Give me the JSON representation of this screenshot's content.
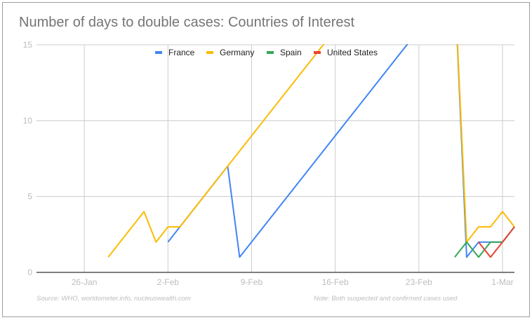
{
  "chart_data": {
    "type": "line",
    "title": "Number of days to double cases: Countries of Interest",
    "xlabel": "",
    "ylabel": "",
    "xlim": [
      "22-Jan",
      "2-Mar"
    ],
    "ylim": [
      0,
      15
    ],
    "x_ticks": [
      "26-Jan",
      "2-Feb",
      "9-Feb",
      "16-Feb",
      "23-Feb",
      "1-Mar"
    ],
    "y_ticks": [
      0,
      5,
      10,
      15
    ],
    "grid": true,
    "legend_position": "top",
    "series": [
      {
        "name": "France",
        "color": "#4285f4",
        "points": [
          [
            "2-Feb",
            2
          ],
          [
            "3-Feb",
            3
          ],
          [
            "7-Feb",
            7
          ],
          [
            "8-Feb",
            1
          ],
          [
            "26-Feb",
            19
          ],
          [
            "27-Feb",
            1
          ],
          [
            "28-Feb",
            2
          ],
          [
            "29-Feb",
            2
          ],
          [
            "1-Mar",
            2
          ],
          [
            "2-Mar",
            3
          ]
        ]
      },
      {
        "name": "Germany",
        "color": "#fbbc04",
        "points": [
          [
            "28-Jan",
            1
          ],
          [
            "31-Jan",
            4
          ],
          [
            "1-Feb",
            2
          ],
          [
            "2-Feb",
            3
          ],
          [
            "3-Feb",
            3
          ],
          [
            "16-Feb",
            16
          ],
          [
            "26-Feb",
            19
          ],
          [
            "27-Feb",
            2
          ],
          [
            "28-Feb",
            3
          ],
          [
            "29-Feb",
            3
          ],
          [
            "1-Mar",
            4
          ],
          [
            "2-Mar",
            3
          ]
        ]
      },
      {
        "name": "Spain",
        "color": "#34a853",
        "points": [
          [
            "26-Feb",
            1
          ],
          [
            "27-Feb",
            2
          ],
          [
            "28-Feb",
            1
          ],
          [
            "29-Feb",
            2
          ],
          [
            "1-Mar",
            2
          ],
          [
            "2-Mar",
            3
          ]
        ]
      },
      {
        "name": "United States",
        "color": "#ea4335",
        "points": [
          [
            "28-Feb",
            2
          ],
          [
            "29-Feb",
            1
          ],
          [
            "1-Mar",
            2
          ],
          [
            "2-Mar",
            3
          ]
        ]
      }
    ]
  },
  "footer": {
    "source": "Source: WHO, worldometer.info, nucleuswealth.com",
    "note": "Note: Both suspected and confirmed cases used"
  }
}
